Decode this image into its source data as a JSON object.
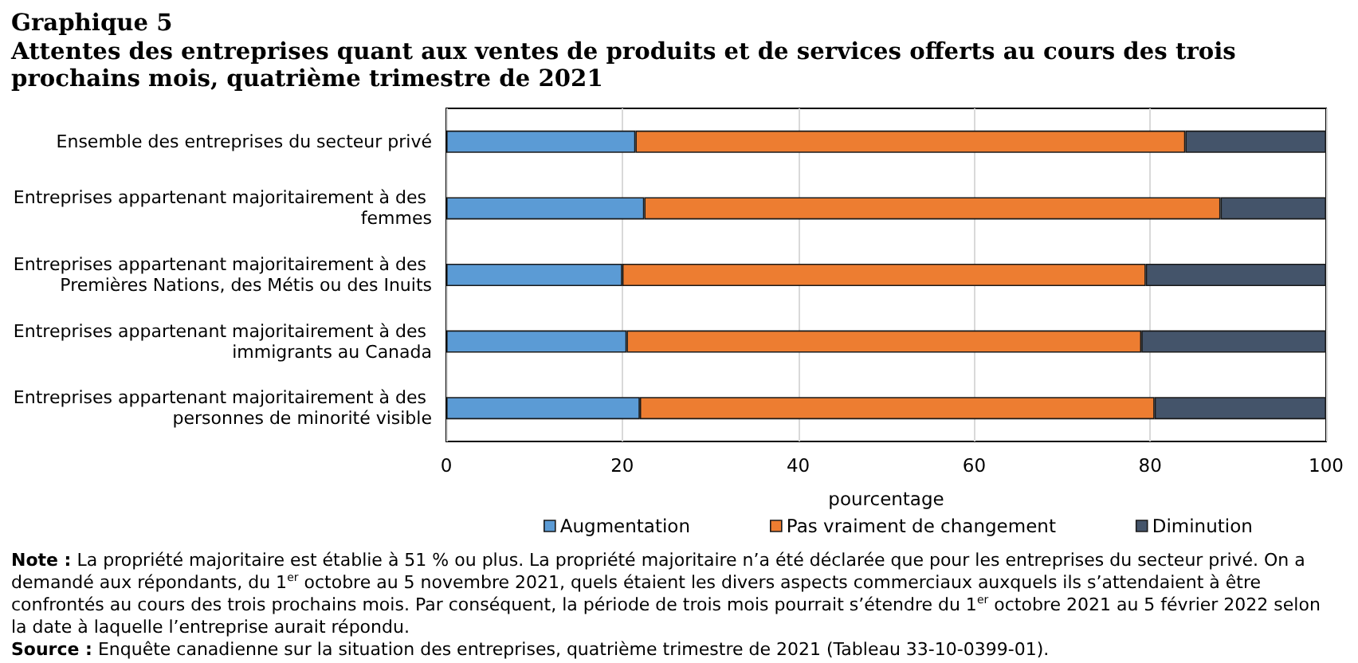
{
  "chart_data": {
    "type": "bar",
    "orientation": "horizontal",
    "stacked": true,
    "title": "Graphique 5",
    "subtitle": "Attentes des entreprises quant aux ventes de produits et de services offerts au cours des trois prochains mois, quatrième trimestre de 2021",
    "xlabel": "pourcentage",
    "categories": [
      "Ensemble des entreprises du secteur privé",
      "Entreprises appartenant majoritairement à des femmes",
      "Entreprises appartenant majoritairement à des Premières Nations, des Métis ou des Inuits",
      "Entreprises appartenant majoritairement à des immigrants au Canada",
      "Entreprises appartenant majoritairement à des personnes de minorité visible"
    ],
    "series": [
      {
        "name": "Augmentation",
        "color": "#5b9bd5",
        "values": [
          21.5,
          22.5,
          20,
          20.5,
          22
        ]
      },
      {
        "name": "Pas vraiment de changement",
        "color": "#ed7d31",
        "values": [
          62.5,
          65.5,
          59.5,
          58.5,
          58.5
        ]
      },
      {
        "name": "Diminution",
        "color": "#44546a",
        "values": [
          16,
          12,
          20.5,
          21,
          19.5
        ]
      }
    ],
    "xlim": [
      0,
      100
    ],
    "xticks": [
      0,
      20,
      40,
      60,
      80,
      100
    ],
    "grid": "x",
    "legend": "bottom",
    "annotations": [
      "Note : La propriété majoritaire est établie à 51 % ou plus. La propriété majoritaire n’a été déclarée que pour les entreprises du secteur privé. On a demandé aux répondants, du 1$^{er}$ octobre au 5 novembre 2021, quels étaient les divers aspects commerciaux auxquels ils s’attendaient à être confrontés au cours des trois prochains mois. Par conséquent, la période de trois mois pourrait s’étendre du 1$^{er}$ octobre 2021 au 5 février 2022 selon la date à laquelle l’entreprise aurait répondu.",
      "Source : Enquête canadienne sur la situation des entreprises, quatrième trimestre de 2021 (Tableau 33-10-0399-01)."
    ]
  }
}
